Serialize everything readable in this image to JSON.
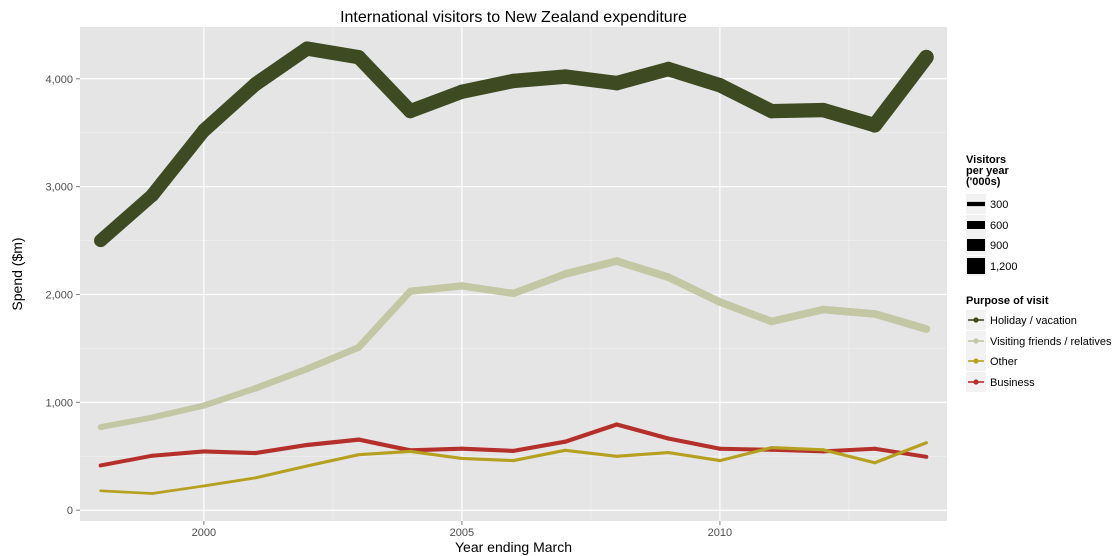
{
  "chart_data": {
    "type": "line",
    "title": "International visitors to New Zealand expenditure",
    "xlabel": "Year ending March",
    "ylabel": "Spend ($m)",
    "xlim": [
      1997.6,
      2014.4
    ],
    "ylim": [
      -100,
      4480
    ],
    "x_ticks": [
      2000,
      2005,
      2010
    ],
    "x_tick_labels": [
      "2000",
      "2005",
      "2010"
    ],
    "y_ticks": [
      0,
      1000,
      2000,
      3000,
      4000
    ],
    "y_tick_labels": [
      "0",
      "1,000",
      "2,000",
      "3,000",
      "4,000"
    ],
    "grid": true,
    "legend_position": "right",
    "x": [
      1998,
      1999,
      2000,
      2001,
      2002,
      2003,
      2004,
      2005,
      2006,
      2007,
      2008,
      2009,
      2010,
      2011,
      2012,
      2013,
      2014
    ],
    "series": [
      {
        "name": "Holiday / vacation",
        "color": "#3d4a22",
        "values": [
          2500,
          2920,
          3520,
          3950,
          4280,
          4200,
          3700,
          3880,
          3980,
          4020,
          3960,
          4090,
          3940,
          3700,
          3710,
          3570,
          4200
        ],
        "visitors": [
          980,
          1000,
          1030,
          1050,
          1080,
          1070,
          1050,
          1070,
          1080,
          1090,
          1080,
          1090,
          1080,
          1070,
          1080,
          1080,
          1150
        ]
      },
      {
        "name": "Visiting friends / relatives",
        "color": "#c3c7a3",
        "values": [
          770,
          860,
          970,
          1130,
          1310,
          1510,
          2030,
          2080,
          2010,
          2190,
          2310,
          2160,
          1930,
          1750,
          1860,
          1820,
          1680
        ],
        "visitors": [
          420,
          440,
          450,
          470,
          490,
          510,
          530,
          540,
          540,
          560,
          570,
          570,
          560,
          560,
          570,
          570,
          580
        ]
      },
      {
        "name": "Other",
        "color": "#b5a020",
        "values": [
          180,
          155,
          225,
          300,
          410,
          515,
          545,
          480,
          460,
          555,
          500,
          535,
          460,
          580,
          560,
          440,
          625
        ],
        "visitors": [
          190,
          190,
          200,
          210,
          220,
          230,
          230,
          220,
          220,
          230,
          220,
          230,
          220,
          230,
          230,
          220,
          240
        ]
      },
      {
        "name": "Business",
        "color": "#b5302a",
        "values": [
          415,
          505,
          545,
          530,
          605,
          655,
          555,
          570,
          550,
          635,
          795,
          665,
          570,
          560,
          545,
          570,
          495
        ],
        "visitors": [
          280,
          290,
          300,
          300,
          310,
          310,
          300,
          300,
          300,
          300,
          310,
          300,
          290,
          290,
          290,
          290,
          290
        ]
      }
    ],
    "size_legend": {
      "title": [
        "Visitors",
        "per year",
        "('000s)"
      ],
      "entries": [
        {
          "label": "300",
          "value": 300
        },
        {
          "label": "600",
          "value": 600
        },
        {
          "label": "900",
          "value": 900
        },
        {
          "label": "1,200",
          "value": 1200
        }
      ]
    },
    "color_legend": {
      "title": "Purpose of visit"
    }
  }
}
